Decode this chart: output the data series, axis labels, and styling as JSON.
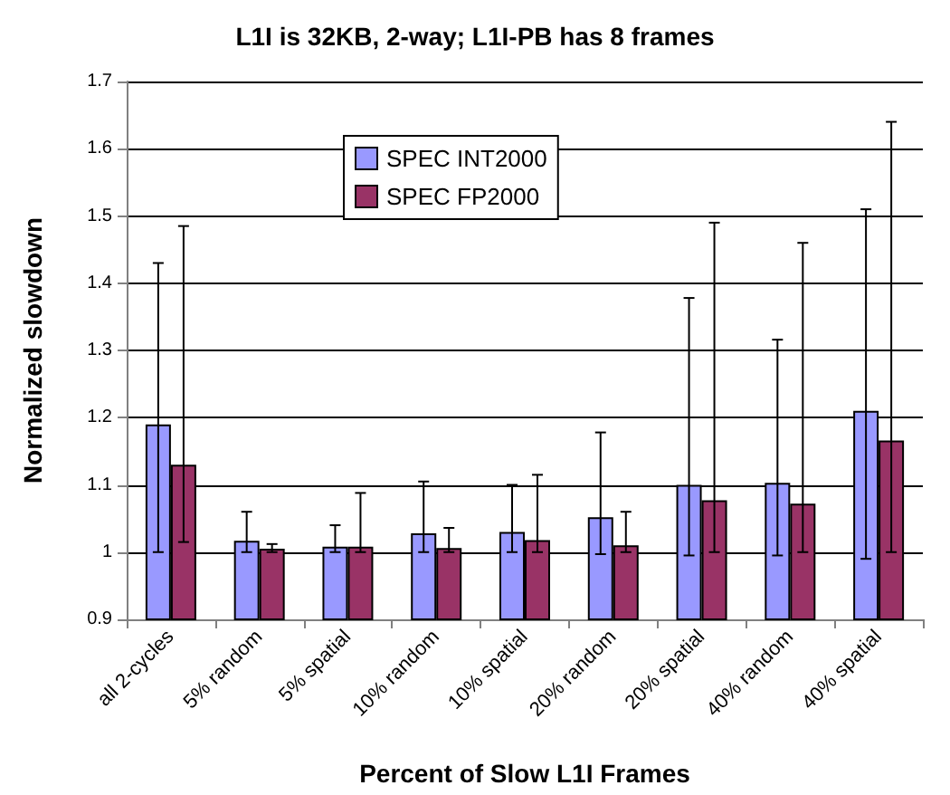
{
  "chart_data": {
    "type": "bar",
    "title": "L1I is 32KB, 2-way; L1I-PB has 8 frames",
    "xlabel": "Percent of Slow L1I Frames",
    "ylabel": "Normalized slowdown",
    "categories": [
      "all 2-cycles",
      "5% random",
      "5% spatial",
      "10% random",
      "10% spatial",
      "20% random",
      "20% spatial",
      "40% random",
      "40% spatial"
    ],
    "series": [
      {
        "name": "SPEC INT2000",
        "color": "#9999ff",
        "values": [
          1.19,
          1.017,
          1.008,
          1.028,
          1.03,
          1.052,
          1.1,
          1.103,
          1.21
        ],
        "errors": [
          [
            1.0,
            1.43
          ],
          [
            1.0,
            1.06
          ],
          [
            1.0,
            1.04
          ],
          [
            1.0,
            1.105
          ],
          [
            1.0,
            1.1
          ],
          [
            0.997,
            1.178
          ],
          [
            0.995,
            1.378
          ],
          [
            0.995,
            1.316
          ],
          [
            0.99,
            1.51
          ]
        ]
      },
      {
        "name": "SPEC FP2000",
        "color": "#993366",
        "values": [
          1.13,
          1.005,
          1.008,
          1.006,
          1.018,
          1.01,
          1.077,
          1.072,
          1.166
        ],
        "errors": [
          [
            1.015,
            1.485
          ],
          [
            1.0,
            1.012
          ],
          [
            1.0,
            1.088
          ],
          [
            1.0,
            1.036
          ],
          [
            1.0,
            1.115
          ],
          [
            1.0,
            1.06
          ],
          [
            1.0,
            1.49
          ],
          [
            1.0,
            1.46
          ],
          [
            1.0,
            1.64
          ]
        ]
      }
    ],
    "ylim": [
      0.9,
      1.7
    ],
    "yticks": [
      0.9,
      1,
      1.1,
      1.2,
      1.3,
      1.4,
      1.5,
      1.6,
      1.7
    ],
    "grid": "y",
    "legend": "top left"
  }
}
